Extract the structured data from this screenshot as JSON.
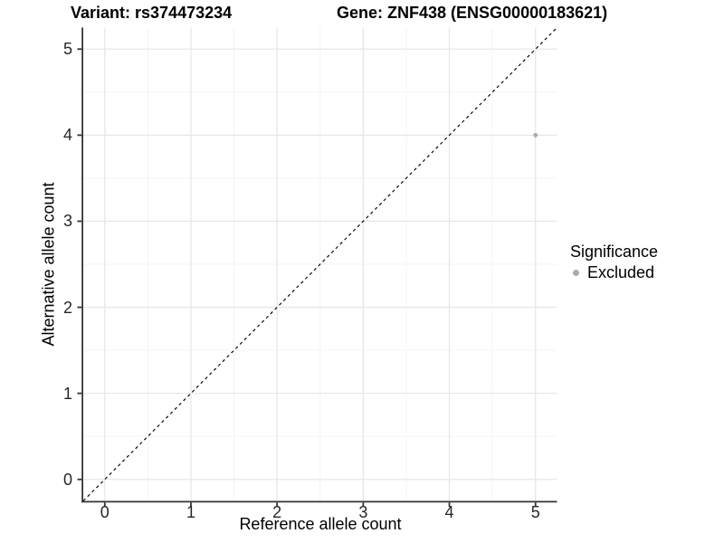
{
  "titles": {
    "left": "Variant: rs374473234",
    "right": "Gene: ZNF438 (ENSG00000183621)"
  },
  "chart_data": {
    "type": "scatter",
    "xlabel": "Reference allele count",
    "ylabel": "Alternative allele count",
    "xlim": [
      -0.25,
      5.25
    ],
    "ylim": [
      -0.25,
      5.25
    ],
    "xticks": [
      0,
      1,
      2,
      3,
      4,
      5
    ],
    "yticks": [
      0,
      1,
      2,
      3,
      4,
      5
    ],
    "minor_ticks": [
      0.5,
      1.5,
      2.5,
      3.5,
      4.5
    ],
    "grid": "major+minor",
    "points": [
      {
        "x": 5,
        "y": 4,
        "series": "Excluded"
      }
    ],
    "identity_line": {
      "style": "dashed",
      "from": [
        -0.25,
        -0.25
      ],
      "to": [
        5.25,
        5.25
      ]
    },
    "legend": {
      "title": "Significance",
      "position": "right",
      "items": [
        {
          "label": "Excluded",
          "color": "#ababab"
        }
      ]
    }
  },
  "colors": {
    "point": "#ababab",
    "grid_major": "#e7e7e7",
    "grid_minor": "#f3f3f3",
    "axis": "#333333",
    "dashed_line": "#000000",
    "tick_text": "#262626"
  }
}
